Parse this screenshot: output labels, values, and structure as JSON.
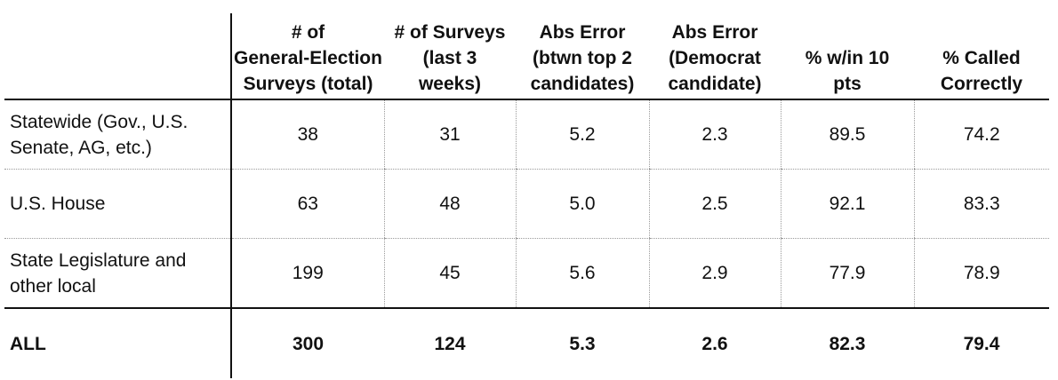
{
  "headers": [
    "",
    "# of General-Election Surveys (total)",
    "# of Surveys (last 3 weeks)",
    "Abs Error (btwn top 2 candidates)",
    "Abs Error (Democrat candidate)",
    "% w/in 10 pts",
    "% Called Correctly"
  ],
  "header_lines": [
    [],
    [
      "# of",
      "General-Election",
      "Surveys (total)"
    ],
    [
      "# of Surveys",
      "(last 3",
      "weeks)"
    ],
    [
      "Abs Error",
      "(btwn top 2",
      "candidates)"
    ],
    [
      "Abs Error",
      "(Democrat",
      "candidate)"
    ],
    [
      "% w/in 10",
      "pts"
    ],
    [
      "% Called",
      "Correctly"
    ]
  ],
  "rows": [
    {
      "label_lines": [
        "Statewide (Gov., U.S.",
        "Senate, AG, etc.)"
      ],
      "values": [
        "38",
        "31",
        "5.2",
        "2.3",
        "89.5",
        "74.2"
      ]
    },
    {
      "label_lines": [
        "U.S. House"
      ],
      "values": [
        "63",
        "48",
        "5.0",
        "2.5",
        "92.1",
        "83.3"
      ]
    },
    {
      "label_lines": [
        "State Legislature and",
        "other local"
      ],
      "values": [
        "199",
        "45",
        "5.6",
        "2.9",
        "77.9",
        "78.9"
      ]
    }
  ],
  "total": {
    "label": "ALL",
    "values": [
      "300",
      "124",
      "5.3",
      "2.6",
      "82.3",
      "79.4"
    ]
  }
}
